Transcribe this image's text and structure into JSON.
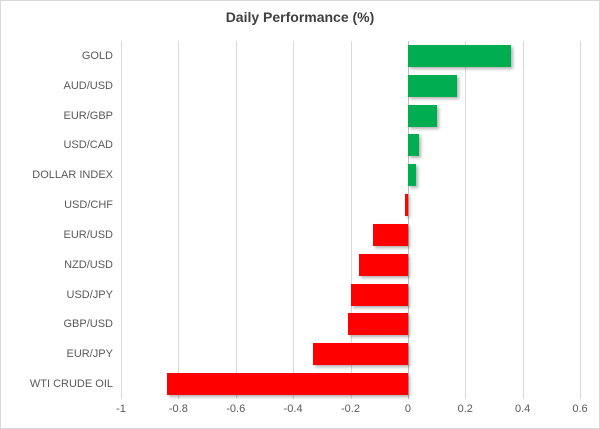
{
  "chart_data": {
    "type": "bar",
    "orientation": "horizontal",
    "title": "Daily Performance (%)",
    "categories": [
      "GOLD",
      "AUD/USD",
      "EUR/GBP",
      "USD/CAD",
      "DOLLAR INDEX",
      "USD/CHF",
      "EUR/USD",
      "NZD/USD",
      "USD/JPY",
      "GBP/USD",
      "EUR/JPY",
      "WTI CRUDE OIL"
    ],
    "values": [
      0.36,
      0.17,
      0.1,
      0.04,
      0.03,
      -0.01,
      -0.12,
      -0.17,
      -0.2,
      -0.21,
      -0.33,
      -0.84
    ],
    "xlabel": "",
    "ylabel": "",
    "xlim": [
      -1,
      0.6
    ],
    "tick_values": [
      -1,
      -0.8,
      -0.6,
      -0.4,
      -0.2,
      0,
      0.2,
      0.4,
      0.6
    ],
    "tick_labels": [
      "-1",
      "-0.8",
      "-0.6",
      "-0.4",
      "-0.2",
      "0",
      "0.2",
      "0.4",
      "0.6"
    ],
    "grid": true,
    "legend": "none",
    "positive_color": "#00AD50",
    "negative_color": "#FF0000",
    "gridline_color": "#D9D9D9",
    "zero_line_color": "#BFBFBF",
    "title_color": "#404040",
    "label_color": "#595959"
  }
}
